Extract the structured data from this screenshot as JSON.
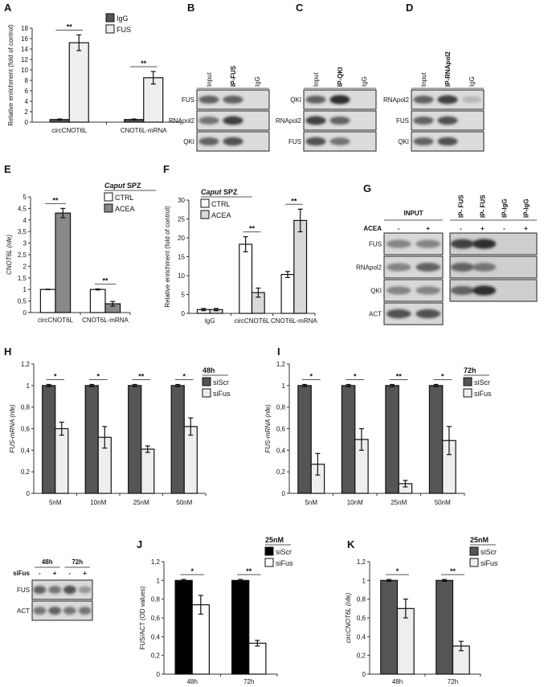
{
  "chart_data": [
    {
      "panel": "A",
      "type": "bar",
      "ylabel": "Relative enrichment (fold of control)",
      "ylim": [
        0,
        18
      ],
      "ystep": 2,
      "decimal": ".",
      "categories": [
        "circCNOT6L",
        "CNOT6L-mRNA"
      ],
      "series": [
        {
          "name": "IgG",
          "color": "#555555",
          "values": [
            0.5,
            0.5
          ],
          "errors": [
            0.1,
            0.1
          ]
        },
        {
          "name": "FUS",
          "color": "#eeeeee",
          "values": [
            15.2,
            8.5
          ],
          "errors": [
            1.5,
            1.2
          ]
        }
      ],
      "significance": [
        "**",
        "**"
      ],
      "legend_title": ""
    },
    {
      "panel": "E",
      "type": "bar",
      "ylabel": "CNOT6L (nfe)",
      "ylim": [
        0,
        5
      ],
      "ystep": 0.5,
      "decimal": ",",
      "categories": [
        "circCNOT6L",
        "CNOT6L-mRNA"
      ],
      "series": [
        {
          "name": "CTRL",
          "color": "#ffffff",
          "values": [
            1,
            1
          ],
          "errors": [
            0.01,
            0.02
          ]
        },
        {
          "name": "ACEA",
          "color": "#888888",
          "values": [
            4.3,
            0.38
          ],
          "errors": [
            0.2,
            0.1
          ]
        }
      ],
      "significance": [
        "**",
        "**"
      ],
      "legend_title": "Caput SPZ"
    },
    {
      "panel": "F",
      "type": "bar",
      "ylabel": "Relative enrichment (fold of control)",
      "ylim": [
        0,
        30
      ],
      "ystep": 5,
      "decimal": ",",
      "categories": [
        "IgG",
        "circCNOT6L",
        "CNOT6L-mRNA"
      ],
      "series": [
        {
          "name": "CTRL",
          "color": "#ffffff",
          "values": [
            1,
            18.3,
            10.3
          ],
          "errors": [
            0.3,
            2,
            0.8
          ]
        },
        {
          "name": "ACEA",
          "color": "#d9d9d9",
          "values": [
            1,
            5.5,
            24.6
          ],
          "errors": [
            0.3,
            1.2,
            3
          ]
        }
      ],
      "significance": [
        "",
        "**",
        "**"
      ],
      "legend_title": "Caput SPZ"
    },
    {
      "panel": "H",
      "type": "bar",
      "ylabel": "FUS-mRNA (nfe)",
      "ylim": [
        0,
        1.2
      ],
      "ystep": 0.2,
      "decimal": ",",
      "categories": [
        "5nM",
        "10nM",
        "25nM",
        "50nM"
      ],
      "series": [
        {
          "name": "siScr",
          "color": "#555555",
          "values": [
            1,
            1,
            1,
            1
          ],
          "errors": [
            0.01,
            0.01,
            0.01,
            0.01
          ]
        },
        {
          "name": "siFus",
          "color": "#eeeeee",
          "values": [
            0.6,
            0.52,
            0.41,
            0.62
          ],
          "errors": [
            0.06,
            0.1,
            0.03,
            0.08
          ]
        }
      ],
      "significance": [
        "*",
        "*",
        "**",
        "*"
      ],
      "legend_title": "48h"
    },
    {
      "panel": "I",
      "type": "bar",
      "ylabel": "FUS-mRNA (nfe)",
      "ylim": [
        0,
        1.2
      ],
      "ystep": 0.2,
      "decimal": ",",
      "categories": [
        "5nM",
        "10nM",
        "25nM",
        "50nM"
      ],
      "series": [
        {
          "name": "siScr",
          "color": "#555555",
          "values": [
            1,
            1,
            1,
            1
          ],
          "errors": [
            0.01,
            0.01,
            0.01,
            0.01
          ]
        },
        {
          "name": "siFus",
          "color": "#eeeeee",
          "values": [
            0.27,
            0.5,
            0.09,
            0.49
          ],
          "errors": [
            0.1,
            0.1,
            0.03,
            0.13
          ]
        }
      ],
      "significance": [
        "*",
        "*",
        "**",
        "*"
      ],
      "legend_title": "72h"
    },
    {
      "panel": "J",
      "type": "bar",
      "ylabel": "FUS/ACT (OD values)",
      "ylim": [
        0,
        1.2
      ],
      "ystep": 0.2,
      "decimal": ",",
      "categories": [
        "48h",
        "72h"
      ],
      "series": [
        {
          "name": "siScr",
          "color": "#000000",
          "values": [
            1,
            1
          ],
          "errors": [
            0.01,
            0.01
          ]
        },
        {
          "name": "siFus",
          "color": "#ffffff",
          "values": [
            0.74,
            0.33
          ],
          "errors": [
            0.1,
            0.03
          ]
        }
      ],
      "significance": [
        "*",
        "**"
      ],
      "legend_title": "25nM"
    },
    {
      "panel": "K",
      "type": "bar",
      "ylabel": "circCNOT6L (nfe)",
      "ylim": [
        0,
        1.2
      ],
      "ystep": 0.2,
      "decimal": ",",
      "categories": [
        "48h",
        "72h"
      ],
      "series": [
        {
          "name": "siScr",
          "color": "#555555",
          "values": [
            1,
            1
          ],
          "errors": [
            0.01,
            0.01
          ]
        },
        {
          "name": "siFus",
          "color": "#eeeeee",
          "values": [
            0.7,
            0.3
          ],
          "errors": [
            0.1,
            0.05
          ]
        }
      ],
      "significance": [
        "*",
        "**"
      ],
      "legend_title": "25nM"
    }
  ],
  "blots": [
    {
      "panel": "B",
      "lanes": [
        "Input",
        "IP-FUS",
        "IgG"
      ],
      "rows": [
        {
          "label": "FUS",
          "bands": [
            0.6,
            0.6,
            0
          ]
        },
        {
          "label": "RNApol2",
          "bands": [
            0.5,
            0.8,
            0
          ]
        },
        {
          "label": "QKI",
          "bands": [
            0.6,
            0.7,
            0
          ]
        }
      ]
    },
    {
      "panel": "C",
      "lanes": [
        "Input",
        "IP-QKI",
        "IgG"
      ],
      "rows": [
        {
          "label": "QKI",
          "bands": [
            0.6,
            0.9,
            0
          ]
        },
        {
          "label": "RNApol2",
          "bands": [
            0.8,
            0.6,
            0
          ]
        },
        {
          "label": "FUS",
          "bands": [
            0.7,
            0.5,
            0
          ]
        }
      ]
    },
    {
      "panel": "D",
      "lanes": [
        "Input",
        "IP-RNApol2",
        "IgG"
      ],
      "rows": [
        {
          "label": "RNApol2",
          "bands": [
            0.6,
            0.8,
            0.1
          ]
        },
        {
          "label": "FUS",
          "bands": [
            0.6,
            0.7,
            0
          ]
        },
        {
          "label": "QKI",
          "bands": [
            0.6,
            0.7,
            0
          ]
        }
      ]
    },
    {
      "panel": "G",
      "treatment_label": "ACEA",
      "input_header": "INPUT",
      "input_signs": [
        "-",
        "+"
      ],
      "ip_lanes": [
        "IP- FUS",
        "IP- FUS",
        "IP-IgG",
        "IP-IgG"
      ],
      "ip_signs": [
        "-",
        "+",
        "-",
        "+"
      ],
      "rows": [
        {
          "label": "FUS",
          "input": [
            0.4,
            0.4
          ],
          "ip": [
            0.8,
            0.9,
            0,
            0
          ]
        },
        {
          "label": "RNApol2",
          "input": [
            0.4,
            0.6
          ],
          "ip": [
            0.6,
            0.5,
            0,
            0
          ]
        },
        {
          "label": "QKI",
          "input": [
            0.4,
            0.4
          ],
          "ip": [
            0.6,
            0.9,
            0,
            0
          ]
        },
        {
          "label": "ACT",
          "input": [
            0.7,
            0.7
          ]
        }
      ]
    },
    {
      "panel": "",
      "treatment_label": "siFus",
      "groups": [
        "48h",
        "72h"
      ],
      "signs": [
        "-",
        "+",
        "-",
        "+"
      ],
      "rows": [
        {
          "label": "FUS",
          "bands": [
            0.6,
            0.5,
            0.7,
            0.3
          ]
        },
        {
          "label": "ACT",
          "bands": [
            0.5,
            0.6,
            0.5,
            0.5
          ]
        }
      ]
    }
  ]
}
